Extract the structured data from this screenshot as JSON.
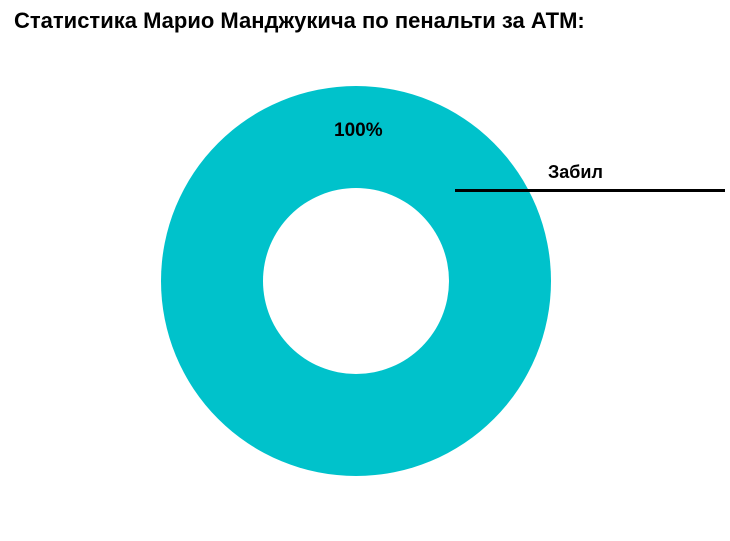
{
  "page": {
    "background": "#ffffff"
  },
  "chart_data": {
    "type": "pie",
    "donut": true,
    "title": "Статистика Марио Манджукича по пенальти за АТМ:",
    "slices": [
      {
        "label": "Забил",
        "value": 100,
        "pct_label": "100%",
        "color": "#00c2cb"
      }
    ],
    "annotations": [
      {
        "text": "Забил",
        "style": "leader-line-right",
        "line_color": "#000000"
      }
    ],
    "legend_position": "right-leader-line",
    "hole_color": "#ffffff"
  }
}
